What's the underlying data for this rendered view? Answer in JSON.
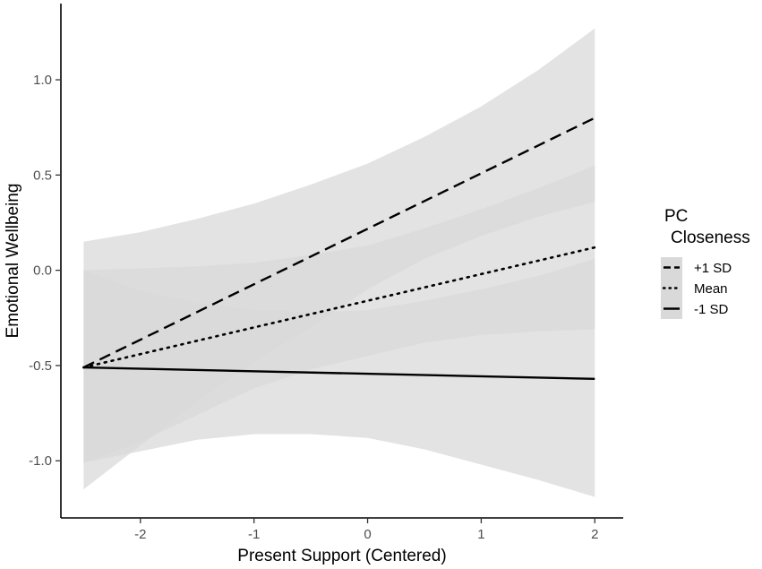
{
  "chart_data": {
    "type": "line",
    "xlabel": "Present Support (Centered)",
    "ylabel": "Emotional Wellbeing",
    "xlim": [
      -2.7,
      2.25
    ],
    "ylim": [
      -1.3,
      1.4
    ],
    "xticks": [
      -2,
      -1,
      0,
      1,
      2
    ],
    "yticks": [
      -1.0,
      -0.5,
      0.0,
      0.5,
      1.0
    ],
    "xtick_labels": [
      "-2",
      "-1",
      "0",
      "1",
      "2"
    ],
    "ytick_labels": [
      "-1.0",
      "-0.5",
      "0.0",
      "0.5",
      "1.0"
    ],
    "grid": false,
    "legend": {
      "title_lines": [
        "PC",
        "Closeness"
      ],
      "placement": "right",
      "entries": [
        "+1 SD",
        "Mean",
        "-1 SD"
      ]
    },
    "band_color": "#d9d9d9",
    "band_opacity": 0.75,
    "series": [
      {
        "name": "+1 SD",
        "style": "dashed",
        "x": [
          -2.5,
          2.0
        ],
        "y": [
          -0.51,
          0.8
        ],
        "band_x": [
          -2.5,
          -2.0,
          -1.5,
          -1.0,
          -0.5,
          0.0,
          0.5,
          1.0,
          1.5,
          2.0
        ],
        "band_lower": [
          -1.15,
          -0.92,
          -0.69,
          -0.48,
          -0.3,
          -0.1,
          0.06,
          0.18,
          0.28,
          0.36
        ],
        "band_upper": [
          0.15,
          0.2,
          0.27,
          0.35,
          0.45,
          0.56,
          0.7,
          0.86,
          1.05,
          1.27
        ]
      },
      {
        "name": "Mean",
        "style": "dotted",
        "x": [
          -2.5,
          2.0
        ],
        "y": [
          -0.51,
          0.12
        ],
        "band_x": [
          -2.5,
          -2.0,
          -1.5,
          -1.0,
          -0.5,
          0.0,
          0.5,
          1.0,
          1.5,
          2.0
        ],
        "band_lower": [
          -1.01,
          -0.9,
          -0.76,
          -0.62,
          -0.52,
          -0.45,
          -0.38,
          -0.34,
          -0.32,
          -0.31
        ],
        "band_upper": [
          0.0,
          0.01,
          0.02,
          0.04,
          0.08,
          0.13,
          0.22,
          0.32,
          0.43,
          0.55
        ]
      },
      {
        "name": "-1 SD",
        "style": "solid",
        "x": [
          -2.5,
          2.0
        ],
        "y": [
          -0.51,
          -0.57
        ],
        "band_x": [
          -2.5,
          -2.0,
          -1.5,
          -1.0,
          -0.5,
          0.0,
          0.5,
          1.0,
          1.5,
          2.0
        ],
        "band_lower": [
          -1.01,
          -0.95,
          -0.89,
          -0.86,
          -0.86,
          -0.88,
          -0.94,
          -1.02,
          -1.1,
          -1.19
        ],
        "band_upper": [
          0.0,
          -0.11,
          -0.17,
          -0.21,
          -0.22,
          -0.21,
          -0.16,
          -0.1,
          -0.03,
          0.06
        ]
      }
    ]
  }
}
